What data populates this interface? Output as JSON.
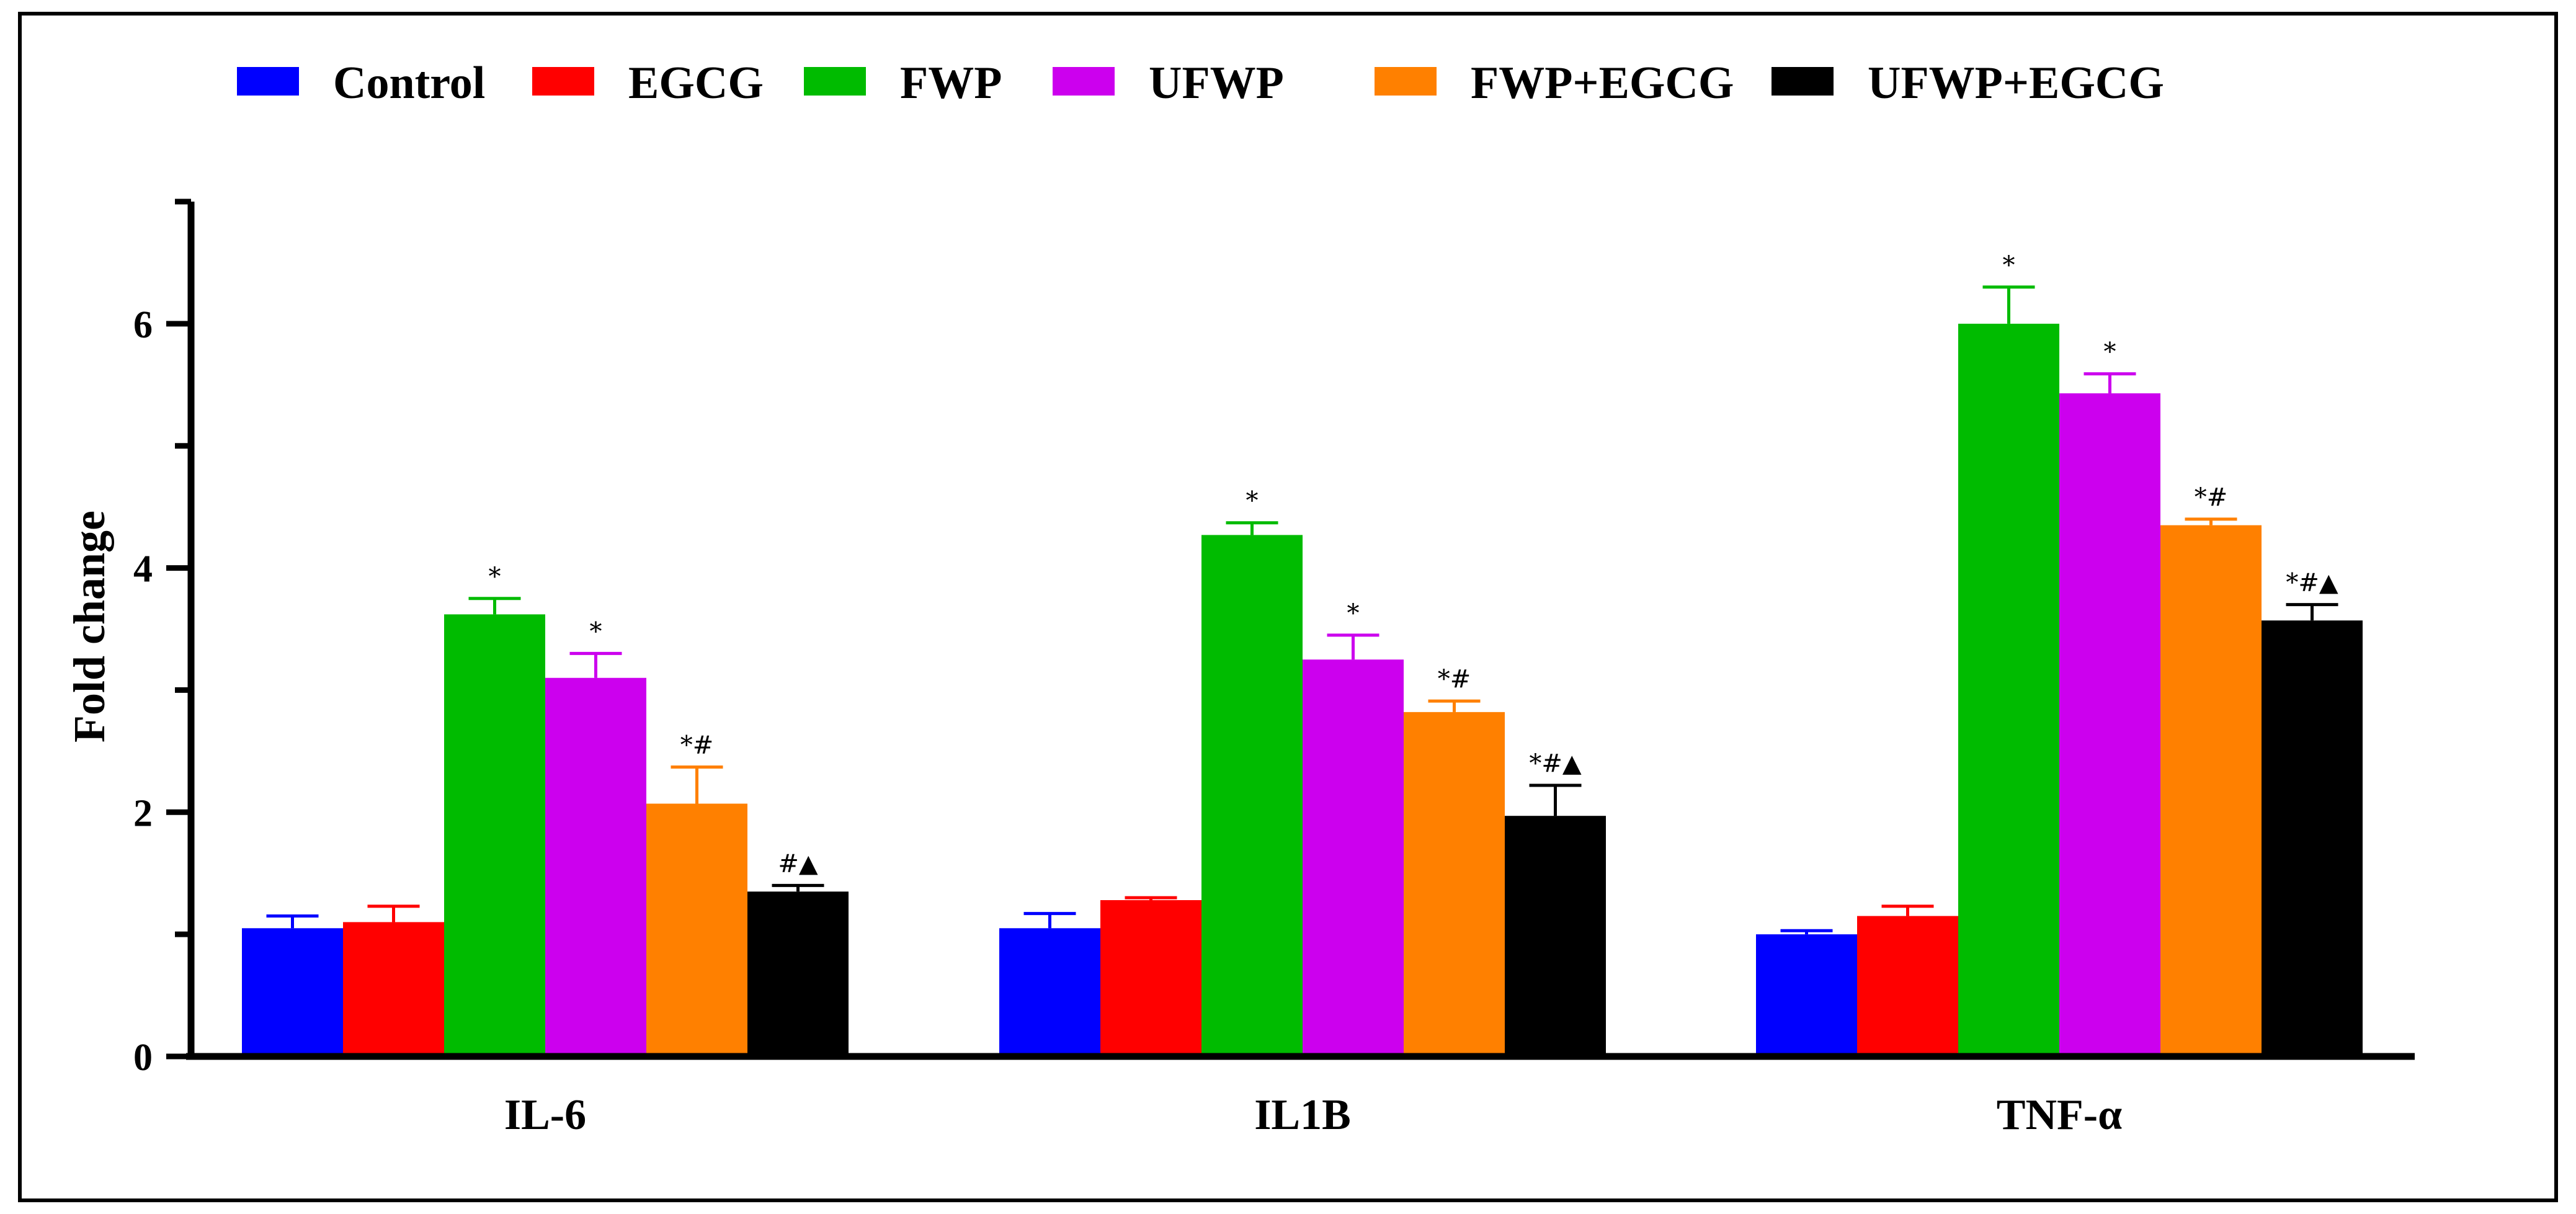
{
  "chart_data": {
    "type": "bar",
    "title": "",
    "xlabel": "",
    "ylabel": "Fold change",
    "ylim": [
      0,
      7
    ],
    "yticks": [
      0,
      2,
      4,
      6
    ],
    "ytick_labels": [
      "0",
      "2",
      "4",
      "6"
    ],
    "grid": false,
    "legend_position": "top",
    "categories": [
      "IL-6",
      "IL1B",
      "TNF-α"
    ],
    "series": [
      {
        "name": "Control",
        "color": "#0000FF",
        "values": [
          1.05,
          1.05,
          1.0
        ],
        "errors": [
          0.1,
          0.12,
          0.03
        ],
        "annotations": [
          "",
          "",
          ""
        ]
      },
      {
        "name": "EGCG",
        "color": "#FF0000",
        "values": [
          1.1,
          1.28,
          1.15
        ],
        "errors": [
          0.13,
          0.02,
          0.08
        ],
        "annotations": [
          "",
          "",
          ""
        ]
      },
      {
        "name": "FWP",
        "color": "#00BB00",
        "values": [
          3.62,
          4.27,
          6.0
        ],
        "errors": [
          0.13,
          0.1,
          0.3
        ],
        "annotations": [
          "*",
          "*",
          "*"
        ]
      },
      {
        "name": "UFWP",
        "color": "#CC00EE",
        "values": [
          3.1,
          3.25,
          5.43
        ],
        "errors": [
          0.2,
          0.2,
          0.16
        ],
        "annotations": [
          "*",
          "*",
          "*"
        ]
      },
      {
        "name": "FWP+EGCG",
        "color": "#FF8000",
        "values": [
          2.07,
          2.82,
          4.35
        ],
        "errors": [
          0.3,
          0.09,
          0.05
        ],
        "annotations": [
          "*#",
          "*#",
          "*#"
        ]
      },
      {
        "name": "UFWP+EGCG",
        "color": "#000000",
        "values": [
          1.35,
          1.97,
          3.57
        ],
        "errors": [
          0.05,
          0.25,
          0.13
        ],
        "annotations": [
          "#▲",
          "*#▲",
          "*#▲"
        ]
      }
    ]
  }
}
